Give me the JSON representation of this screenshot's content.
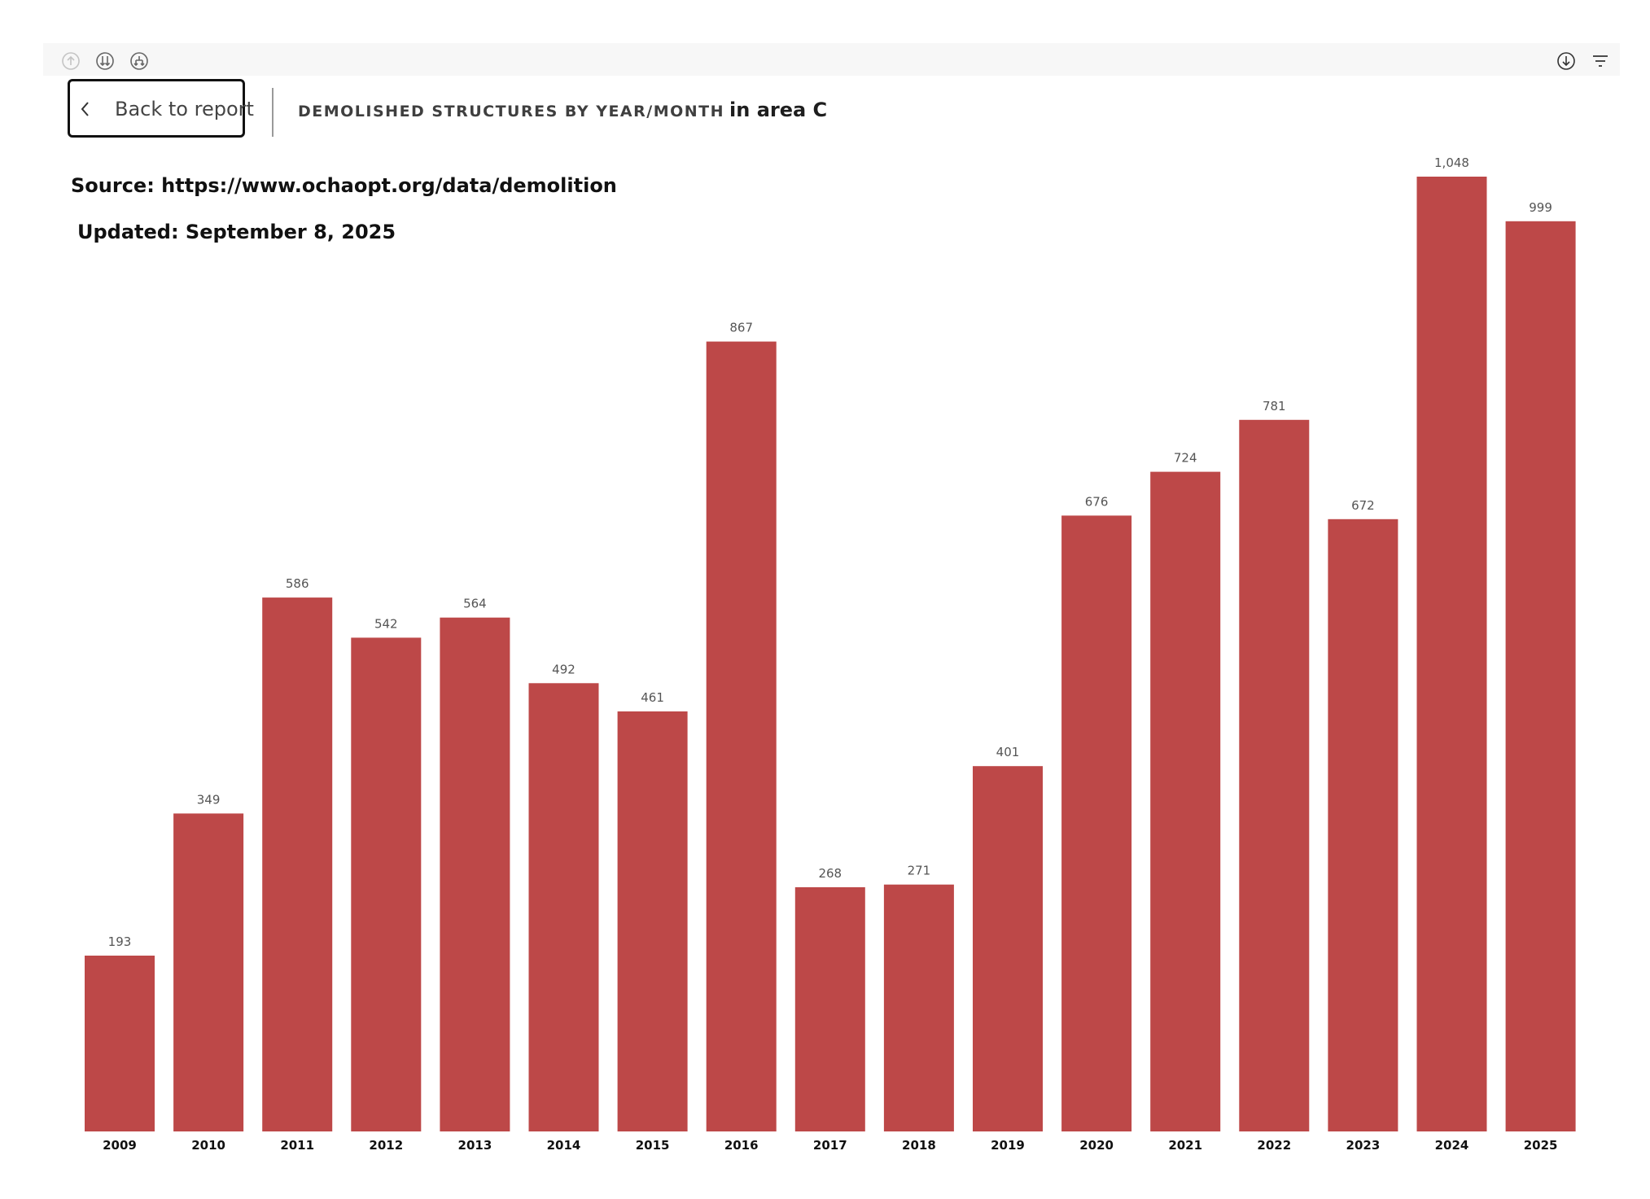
{
  "toolbar": {
    "left_icons": [
      "drill-up-icon",
      "drill-down-all-icon",
      "expand-hierarchy-icon"
    ],
    "right_icons": [
      "download-icon",
      "filter-icon"
    ]
  },
  "back_button": {
    "label": "Back to report",
    "icon": "chevron-left-icon"
  },
  "header": {
    "title": "DEMOLISHED STRUCTURES BY YEAR/MONTH",
    "title_suffix": "in area C"
  },
  "notes": {
    "source": "Source: https://www.ochaopt.org/data/demolition",
    "updated": "Updated: September 8, 2025"
  },
  "colors": {
    "bar": "#bd4848",
    "toolbar_bg": "#f7f7f7"
  },
  "chart_data": {
    "type": "bar",
    "title": "DEMOLISHED STRUCTURES BY YEAR/MONTH in area C",
    "xlabel": "",
    "ylabel": "",
    "categories": [
      "2009",
      "2010",
      "2011",
      "2012",
      "2013",
      "2014",
      "2015",
      "2016",
      "2017",
      "2018",
      "2019",
      "2020",
      "2021",
      "2022",
      "2023",
      "2024",
      "2025"
    ],
    "values": [
      193,
      349,
      586,
      542,
      564,
      492,
      461,
      867,
      268,
      271,
      401,
      676,
      724,
      781,
      672,
      1048,
      999
    ],
    "value_labels": [
      "193",
      "349",
      "586",
      "542",
      "564",
      "492",
      "461",
      "867",
      "268",
      "271",
      "401",
      "676",
      "724",
      "781",
      "672",
      "1,048",
      "999"
    ],
    "ylim": [
      0,
      1048
    ],
    "grid": false,
    "legend": "none"
  }
}
